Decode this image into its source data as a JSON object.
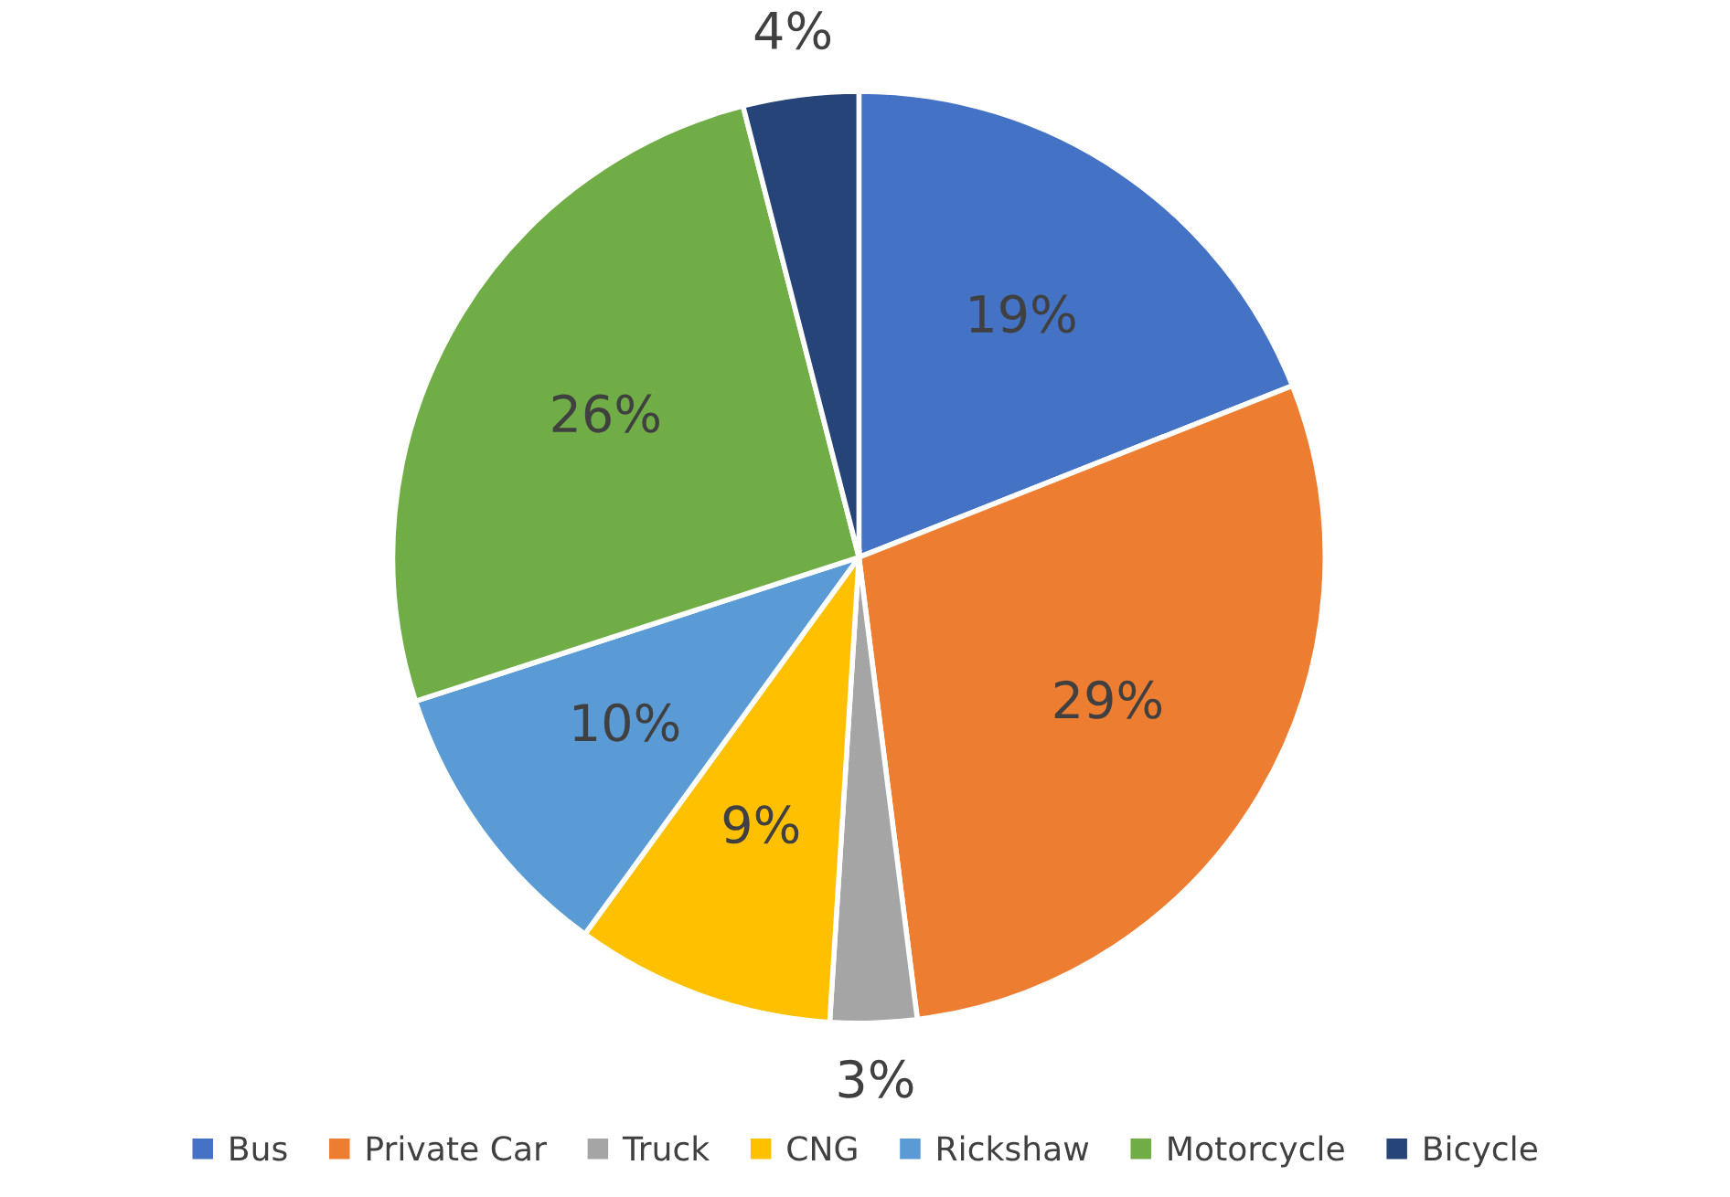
{
  "chart_data": {
    "type": "pie",
    "categories": [
      "Bus",
      "Private Car",
      "Truck",
      "CNG",
      "Rickshaw",
      "Motorcycle",
      "Bicycle"
    ],
    "values": [
      19,
      29,
      3,
      9,
      10,
      26,
      4
    ],
    "colors": [
      "#4472c4",
      "#ed7d31",
      "#a5a5a5",
      "#ffc000",
      "#5b9bd5",
      "#70ad47",
      "#264478"
    ],
    "value_labels": [
      "19%",
      "29%",
      "3%",
      "9%",
      "10%",
      "26%",
      "4%"
    ],
    "legend": "bottom"
  }
}
